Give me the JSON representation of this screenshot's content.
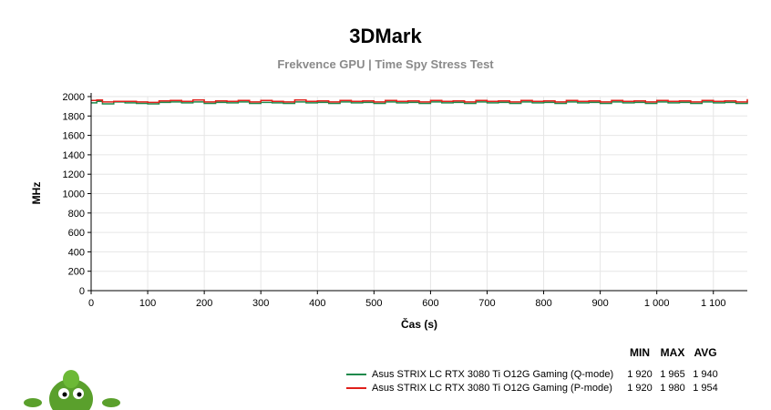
{
  "header": {
    "title": "3DMark",
    "subtitle": "Frekvence GPU | Time Spy Stress Test"
  },
  "legend": {
    "columns": [
      "MIN",
      "MAX",
      "AVG"
    ],
    "rows": [
      {
        "name": "Asus STRIX LC RTX 3080 Ti O12G Gaming (Q-mode)",
        "color": "#1f8a4c",
        "min": "1 920",
        "max": "1 965",
        "avg": "1 940"
      },
      {
        "name": "Asus STRIX LC RTX 3080 Ti O12G Gaming (P-mode)",
        "color": "#e0201b",
        "min": "1 920",
        "max": "1 980",
        "avg": "1 954"
      }
    ]
  },
  "mascot": {
    "icon": "green-alien-mascot-icon"
  },
  "chart_data": {
    "type": "line",
    "xlabel": "Čas (s)",
    "ylabel": "MHz",
    "xlim": [
      0,
      1160
    ],
    "ylim": [
      0,
      2000
    ],
    "xticks": [
      0,
      100,
      200,
      300,
      400,
      500,
      600,
      700,
      800,
      900,
      1000,
      1100
    ],
    "xtick_labels": [
      "0",
      "100",
      "200",
      "300",
      "400",
      "500",
      "600",
      "700",
      "800",
      "900",
      "1 000",
      "1 100"
    ],
    "yticks": [
      0,
      200,
      400,
      600,
      800,
      1000,
      1200,
      1400,
      1600,
      1800,
      2000
    ],
    "grid": true,
    "series": [
      {
        "name": "Asus STRIX LC RTX 3080 Ti O12G Gaming (Q-mode)",
        "color": "#1f8a4c",
        "x": [
          0,
          10,
          20,
          40,
          60,
          80,
          100,
          120,
          140,
          160,
          180,
          200,
          220,
          240,
          260,
          280,
          300,
          320,
          340,
          360,
          380,
          400,
          420,
          440,
          460,
          480,
          500,
          520,
          540,
          560,
          580,
          600,
          620,
          640,
          660,
          680,
          700,
          720,
          740,
          760,
          780,
          800,
          820,
          840,
          860,
          880,
          900,
          920,
          940,
          960,
          980,
          1000,
          1020,
          1040,
          1060,
          1080,
          1100,
          1120,
          1140,
          1160
        ],
        "y": [
          1935,
          1950,
          1925,
          1945,
          1935,
          1930,
          1925,
          1940,
          1945,
          1935,
          1945,
          1930,
          1940,
          1935,
          1945,
          1930,
          1940,
          1935,
          1930,
          1945,
          1935,
          1940,
          1930,
          1945,
          1935,
          1940,
          1930,
          1945,
          1935,
          1940,
          1930,
          1945,
          1935,
          1940,
          1930,
          1945,
          1935,
          1940,
          1930,
          1945,
          1935,
          1940,
          1930,
          1945,
          1935,
          1940,
          1930,
          1945,
          1935,
          1940,
          1930,
          1945,
          1935,
          1940,
          1930,
          1945,
          1935,
          1940,
          1930,
          1960
        ]
      },
      {
        "name": "Asus STRIX LC RTX 3080 Ti O12G Gaming (P-mode)",
        "color": "#e0201b",
        "x": [
          0,
          10,
          20,
          40,
          60,
          80,
          100,
          120,
          140,
          160,
          180,
          200,
          220,
          240,
          260,
          280,
          300,
          320,
          340,
          360,
          380,
          400,
          420,
          440,
          460,
          480,
          500,
          520,
          540,
          560,
          580,
          600,
          620,
          640,
          660,
          680,
          700,
          720,
          740,
          760,
          780,
          800,
          820,
          840,
          860,
          880,
          900,
          920,
          940,
          960,
          980,
          1000,
          1020,
          1040,
          1060,
          1080,
          1100,
          1120,
          1140,
          1160
        ],
        "y": [
          1960,
          1965,
          1945,
          1950,
          1950,
          1945,
          1940,
          1955,
          1960,
          1950,
          1965,
          1945,
          1955,
          1950,
          1960,
          1945,
          1960,
          1950,
          1945,
          1965,
          1950,
          1955,
          1945,
          1960,
          1950,
          1955,
          1945,
          1960,
          1950,
          1955,
          1945,
          1960,
          1950,
          1955,
          1945,
          1960,
          1950,
          1955,
          1945,
          1960,
          1950,
          1955,
          1945,
          1960,
          1950,
          1955,
          1945,
          1960,
          1950,
          1955,
          1945,
          1960,
          1950,
          1955,
          1945,
          1960,
          1950,
          1955,
          1945,
          1975
        ]
      }
    ]
  }
}
